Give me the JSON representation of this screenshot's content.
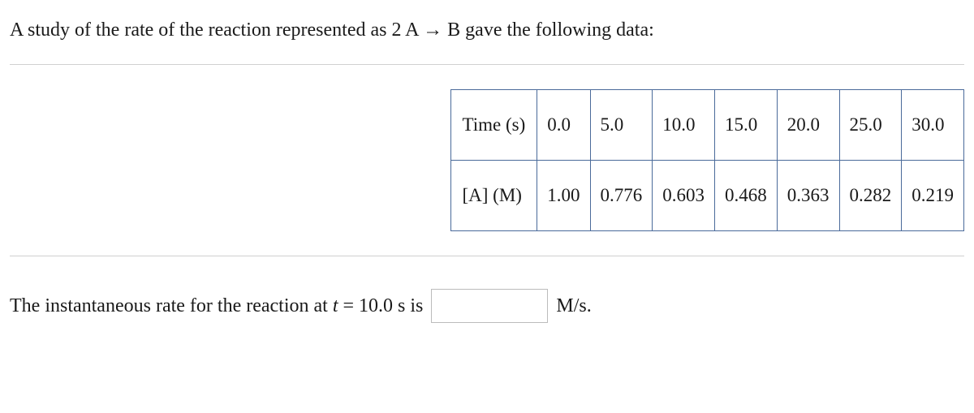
{
  "prompt": "A study of the rate of the reaction represented as 2 A → B gave the following data:",
  "table": {
    "row_labels": [
      "Time (s)",
      "[A] (M)"
    ],
    "time": [
      "0.0",
      "5.0",
      "10.0",
      "15.0",
      "20.0",
      "25.0",
      "30.0"
    ],
    "conc": [
      "1.00",
      "0.776",
      "0.603",
      "0.468",
      "0.363",
      "0.282",
      "0.219"
    ],
    "border_color": "#4a6a9a"
  },
  "answer": {
    "pre_text": "The instantaneous rate for the reaction at ",
    "var": "t",
    "eq_text": " = 10.0 s is",
    "unit": "M/s.",
    "input_value": ""
  }
}
